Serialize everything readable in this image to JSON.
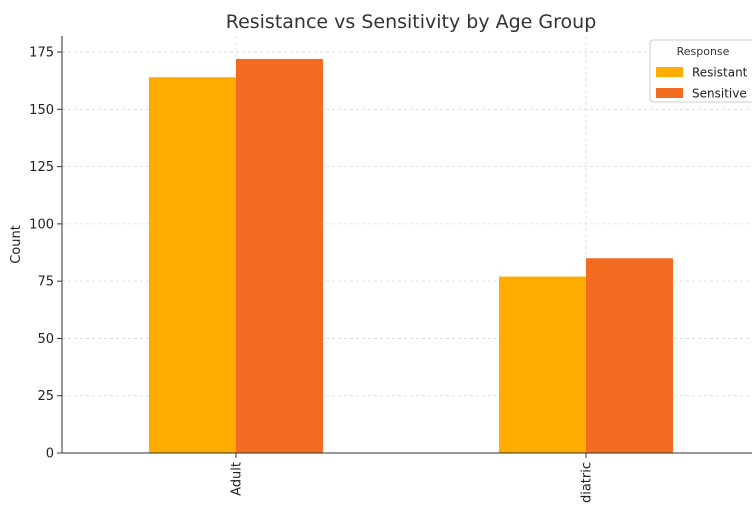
{
  "chart_data": {
    "type": "bar",
    "title": "Resistance vs Sensitivity by Age Group",
    "xlabel": "",
    "ylabel": "Count",
    "categories": [
      "Adult",
      "diatric"
    ],
    "series": [
      {
        "name": "Resistant",
        "values": [
          164,
          77
        ],
        "color": "#FFAC00"
      },
      {
        "name": "Sensitive",
        "values": [
          172,
          85
        ],
        "color": "#F26B21"
      }
    ],
    "ylim": [
      0,
      182
    ],
    "yticks": [
      0,
      25,
      50,
      75,
      100,
      125,
      150,
      175
    ],
    "grid": true,
    "legend": {
      "title": "Response",
      "placement": "top-right"
    }
  }
}
